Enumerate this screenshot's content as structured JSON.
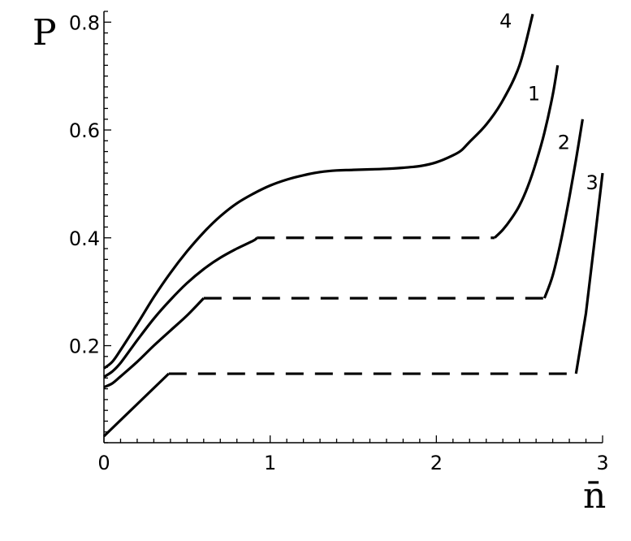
{
  "chart_data": {
    "type": "line",
    "title": "",
    "xlabel": "n̄",
    "ylabel": "P",
    "xlim": [
      0,
      3
    ],
    "ylim": [
      0.02,
      0.82
    ],
    "x_ticks": [
      0,
      1,
      2,
      3
    ],
    "x_tick_labels": [
      "0",
      "1",
      "2",
      "3"
    ],
    "y_ticks": [
      0.2,
      0.4,
      0.6,
      0.8
    ],
    "y_tick_labels": [
      "0.2",
      "0.4",
      "0.6",
      "0.8"
    ],
    "grid": false,
    "series": [
      {
        "label": "4",
        "line_style": "solid",
        "x": [
          0,
          0.05,
          0.1,
          0.2,
          0.3,
          0.4,
          0.5,
          0.6,
          0.7,
          0.8,
          0.9,
          1.0,
          1.1,
          1.2,
          1.3,
          1.4,
          1.5,
          1.6,
          1.7,
          1.8,
          1.9,
          2.0,
          2.1,
          2.15,
          2.2,
          2.3,
          2.4,
          2.5,
          2.58
        ],
        "y": [
          0.158,
          0.17,
          0.192,
          0.24,
          0.29,
          0.335,
          0.375,
          0.41,
          0.44,
          0.464,
          0.482,
          0.497,
          0.508,
          0.516,
          0.522,
          0.525,
          0.526,
          0.527,
          0.528,
          0.53,
          0.533,
          0.54,
          0.553,
          0.562,
          0.578,
          0.61,
          0.655,
          0.72,
          0.815
        ]
      },
      {
        "label": "1",
        "line_style": "solid",
        "x": [
          0,
          0.05,
          0.1,
          0.2,
          0.3,
          0.4,
          0.5,
          0.6,
          0.7,
          0.8,
          0.9,
          0.92,
          2.35,
          2.4,
          2.45,
          2.5,
          2.55,
          2.6,
          2.65,
          2.7,
          2.73
        ],
        "y": [
          0.142,
          0.152,
          0.168,
          0.21,
          0.25,
          0.285,
          0.316,
          0.342,
          0.363,
          0.38,
          0.395,
          0.4,
          0.4,
          0.415,
          0.435,
          0.46,
          0.495,
          0.54,
          0.595,
          0.665,
          0.72
        ]
      },
      {
        "label": "2",
        "line_style": "solid",
        "x": [
          0,
          0.05,
          0.1,
          0.2,
          0.3,
          0.4,
          0.5,
          0.6,
          2.65,
          2.7,
          2.75,
          2.8,
          2.84,
          2.88
        ],
        "y": [
          0.123,
          0.13,
          0.143,
          0.17,
          0.2,
          0.228,
          0.256,
          0.288,
          0.288,
          0.33,
          0.395,
          0.475,
          0.545,
          0.62
        ]
      },
      {
        "label": "3",
        "line_style": "solid",
        "x": [
          0,
          0.39,
          2.84,
          2.9,
          2.95,
          3.0
        ],
        "y": [
          0.032,
          0.148,
          0.148,
          0.26,
          0.39,
          0.52
        ]
      }
    ],
    "plateaus": [
      {
        "series": "1",
        "x": [
          0.92,
          2.35
        ],
        "y": 0.4,
        "line_style": "dashed"
      },
      {
        "series": "2",
        "x": [
          0.6,
          2.65
        ],
        "y": 0.288,
        "line_style": "dashed"
      },
      {
        "series": "3",
        "x": [
          0.39,
          2.84
        ],
        "y": 0.148,
        "line_style": "dashed"
      }
    ],
    "annotations": [
      {
        "text": "4",
        "x": 2.38,
        "y": 0.79
      },
      {
        "text": "1",
        "x": 2.55,
        "y": 0.655
      },
      {
        "text": "2",
        "x": 2.73,
        "y": 0.565
      },
      {
        "text": "3",
        "x": 2.9,
        "y": 0.49
      }
    ]
  }
}
